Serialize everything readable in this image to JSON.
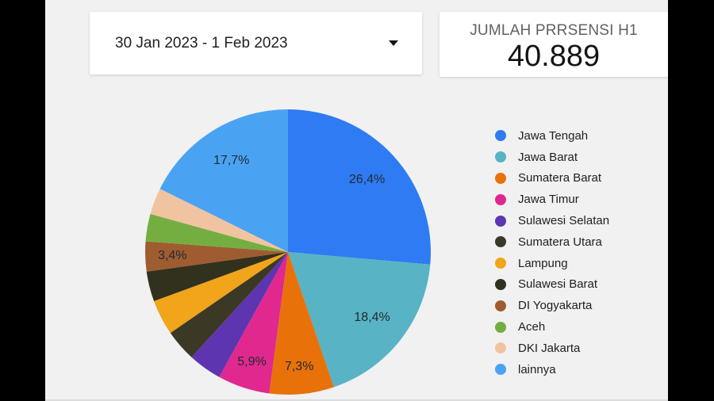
{
  "header": {
    "date_range": "30 Jan 2023 - 1 Feb 2023",
    "metric_title": "JUMLAH PRRSENSI H1",
    "metric_value": "40.889"
  },
  "chart_data": {
    "type": "pie",
    "title": "",
    "legend_position": "right",
    "value_format": "percent-comma-decimal",
    "slices": [
      {
        "name": "Jawa Tengah",
        "value": 26.4,
        "label": "26,4%",
        "color": "#2e7bf3"
      },
      {
        "name": "Jawa Barat",
        "value": 18.4,
        "label": "18,4%",
        "color": "#58b3c4"
      },
      {
        "name": "Sumatera Barat",
        "value": 7.3,
        "label": "7,3%",
        "color": "#e8710a"
      },
      {
        "name": "Jawa Timur",
        "value": 5.9,
        "label": "5,9%",
        "color": "#e0288e"
      },
      {
        "name": "Sulawesi Selatan",
        "value": 3.8,
        "label": "",
        "color": "#5d35b0"
      },
      {
        "name": "Sumatera Utara",
        "value": 3.6,
        "label": "",
        "color": "#3b3926"
      },
      {
        "name": "Lampung",
        "value": 4.0,
        "label": "",
        "color": "#f0a51a"
      },
      {
        "name": "Sulawesi Barat",
        "value": 3.4,
        "label": "",
        "color": "#32311d"
      },
      {
        "name": "DI Yogyakarta",
        "value": 3.4,
        "label": "3,4%",
        "color": "#9f5c31"
      },
      {
        "name": "Aceh",
        "value": 3.1,
        "label": "",
        "color": "#74ae41"
      },
      {
        "name": "DKI Jakarta",
        "value": 3.0,
        "label": "",
        "color": "#f0c4a0"
      },
      {
        "name": "lainnya",
        "value": 17.7,
        "label": "17,7%",
        "color": "#4aa3f2"
      }
    ]
  }
}
